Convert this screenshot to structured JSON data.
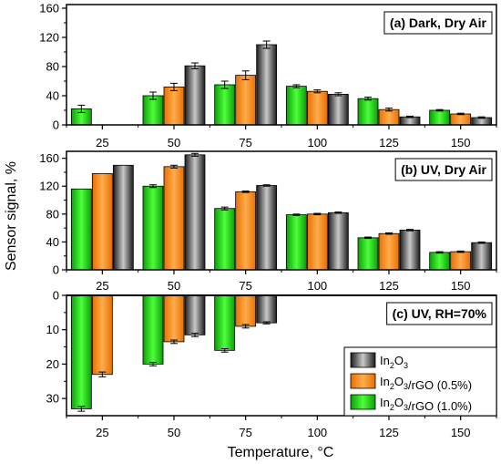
{
  "chart_data": {
    "type": "bar",
    "ylabel": "Sensor signal, %",
    "xlabel": "Temperature, °C",
    "categories": [
      "25",
      "50",
      "75",
      "100",
      "125",
      "150"
    ],
    "legend": {
      "placement": "bottom-right",
      "entries": [
        {
          "key": "in2o3",
          "label_html": "In<tspan baseline-shift=\"sub\" font-size=\"9\">2</tspan>O<tspan baseline-shift=\"sub\" font-size=\"9\">3</tspan>",
          "label": "In2O3"
        },
        {
          "key": "rgo05",
          "label": "In2O3/rGO (0.5%)"
        },
        {
          "key": "rgo10",
          "label": "In2O3/rGO (1.0%)"
        }
      ]
    },
    "colors": {
      "rgo10": "#22e01a",
      "rgo05": "#ff8c1a",
      "in2o3": "#555555"
    },
    "panels": [
      {
        "label": "(a) Dark, Dry Air",
        "ylim": [
          0,
          165
        ],
        "ticks": [
          0,
          40,
          80,
          120,
          160
        ],
        "inverted": false,
        "series": {
          "rgo10": [
            {
              "v": 22,
              "e": 5
            },
            {
              "v": 40,
              "e": 5
            },
            {
              "v": 55,
              "e": 5
            },
            {
              "v": 53,
              "e": 2
            },
            {
              "v": 36,
              "e": 2
            },
            {
              "v": 20,
              "e": 1
            }
          ],
          "rgo05": [
            null,
            {
              "v": 52,
              "e": 5
            },
            {
              "v": 68,
              "e": 6
            },
            {
              "v": 46,
              "e": 2
            },
            {
              "v": 21,
              "e": 2
            },
            {
              "v": 15,
              "e": 1
            }
          ],
          "in2o3": [
            null,
            {
              "v": 81,
              "e": 4
            },
            {
              "v": 110,
              "e": 5
            },
            {
              "v": 42,
              "e": 2
            },
            {
              "v": 11,
              "e": 1
            },
            {
              "v": 10,
              "e": 1
            }
          ]
        }
      },
      {
        "label": "(b) UV, Dry Air",
        "ylim": [
          0,
          170
        ],
        "ticks": [
          0,
          40,
          80,
          120,
          160
        ],
        "inverted": false,
        "series": {
          "rgo10": [
            {
              "v": 116,
              "e": 0
            },
            {
              "v": 120,
              "e": 2
            },
            {
              "v": 88,
              "e": 2
            },
            {
              "v": 79,
              "e": 1
            },
            {
              "v": 46,
              "e": 1
            },
            {
              "v": 25,
              "e": 1
            }
          ],
          "rgo05": [
            {
              "v": 138,
              "e": 0
            },
            {
              "v": 148,
              "e": 2
            },
            {
              "v": 112,
              "e": 1
            },
            {
              "v": 80,
              "e": 1
            },
            {
              "v": 52,
              "e": 1
            },
            {
              "v": 26,
              "e": 1
            }
          ],
          "in2o3": [
            {
              "v": 150,
              "e": 0
            },
            {
              "v": 165,
              "e": 2
            },
            {
              "v": 121,
              "e": 1
            },
            {
              "v": 82,
              "e": 1
            },
            {
              "v": 57,
              "e": 1
            },
            {
              "v": 39,
              "e": 1
            }
          ]
        }
      },
      {
        "label": "(c) UV, RH=70%",
        "ylim": [
          0,
          35
        ],
        "ticks": [
          0,
          10,
          20,
          30
        ],
        "inverted": true,
        "series": {
          "rgo10": [
            {
              "v": 33,
              "e": 0.7
            },
            {
              "v": 20,
              "e": 0.5
            },
            {
              "v": 16,
              "e": 0.5
            },
            null,
            null,
            null
          ],
          "rgo05": [
            {
              "v": 23,
              "e": 0.7
            },
            {
              "v": 13.5,
              "e": 0.5
            },
            {
              "v": 9,
              "e": 0.5
            },
            null,
            null,
            null
          ],
          "in2o3": [
            null,
            {
              "v": 11.5,
              "e": 0.5
            },
            {
              "v": 8,
              "e": 0.3
            },
            null,
            null,
            null
          ]
        }
      }
    ]
  }
}
